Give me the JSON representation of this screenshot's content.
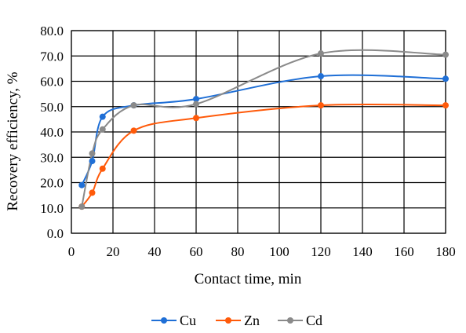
{
  "chart_data": {
    "type": "line",
    "title": "",
    "xlabel": "Contact time, min",
    "ylabel": "Recovery efficiency, %",
    "xlim": [
      0,
      180
    ],
    "ylim": [
      0,
      80
    ],
    "xticks": [
      0,
      20,
      40,
      60,
      80,
      100,
      120,
      140,
      160,
      180
    ],
    "yticks": [
      0,
      10,
      20,
      30,
      40,
      50,
      60,
      70,
      80
    ],
    "xtick_labels": [
      "0",
      "20",
      "40",
      "60",
      "80",
      "100",
      "120",
      "140",
      "160",
      "180"
    ],
    "ytick_labels": [
      "0.0",
      "10.0",
      "20.0",
      "30.0",
      "40.0",
      "50.0",
      "60.0",
      "70.0",
      "80.0"
    ],
    "grid": true,
    "smoothed": true,
    "legend_position": "bottom",
    "series": [
      {
        "name": "Cu",
        "color": "#1f6fd6",
        "x": [
          5,
          10,
          15,
          30,
          60,
          120,
          180
        ],
        "y": [
          19.0,
          28.5,
          46.0,
          50.5,
          53.0,
          62.0,
          61.0
        ]
      },
      {
        "name": "Zn",
        "color": "#ff5a0a",
        "x": [
          5,
          10,
          15,
          30,
          60,
          120,
          180
        ],
        "y": [
          10.5,
          16.0,
          25.5,
          40.5,
          45.5,
          50.5,
          50.5
        ]
      },
      {
        "name": "Cd",
        "color": "#8a8a8a",
        "x": [
          5,
          10,
          15,
          30,
          60,
          120,
          180
        ],
        "y": [
          10.5,
          31.5,
          41.0,
          50.5,
          51.0,
          71.0,
          70.5
        ]
      }
    ]
  }
}
